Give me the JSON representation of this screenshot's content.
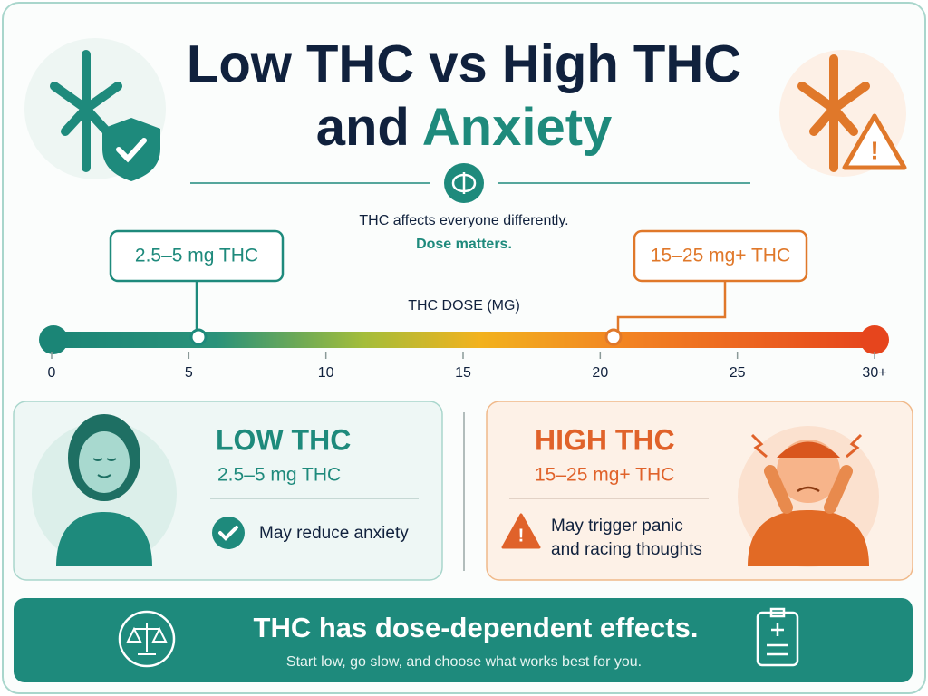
{
  "header": {
    "title_line1": "Low THC vs High THC",
    "title_line2_prefix": "and",
    "title_line2_accent": "Anxiety",
    "subtitle": "THC affects everyone differently.",
    "subtitle_accent": "Dose matters."
  },
  "scale": {
    "label": "THC DOSE (MG)",
    "range": [
      0,
      30
    ],
    "ticks": [
      0,
      5,
      10,
      15,
      20,
      25,
      {
        "value": 30,
        "label": "30+"
      }
    ],
    "low_marker_label": "2.5–5 mg THC",
    "high_marker_label": "15–25 mg+ THC"
  },
  "low_card": {
    "title": "LOW THC",
    "dose": "2.5–5 mg THC",
    "effect": "May reduce anxiety"
  },
  "high_card": {
    "title": "HIGH THC",
    "dose": "15–25 mg+ THC",
    "effect_lines": [
      "May trigger panic",
      "and racing thoughts"
    ]
  },
  "footer": {
    "headline": "THC has dose-dependent effects.",
    "note": "Start low, go slow, and choose what works best for you."
  }
}
